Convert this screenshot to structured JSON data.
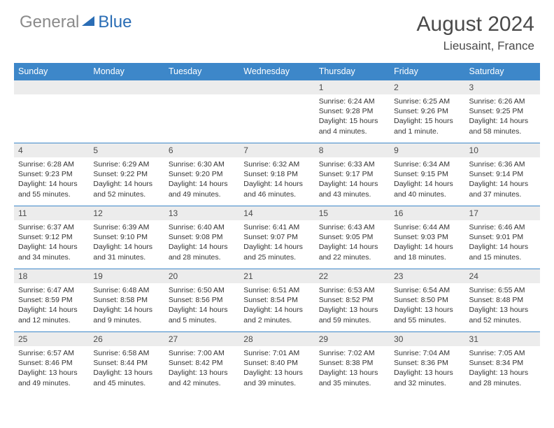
{
  "logo": {
    "text_gray": "General",
    "text_blue": "Blue"
  },
  "title": "August 2024",
  "location": "Lieusaint, France",
  "colors": {
    "header_bg": "#3d87c9",
    "header_text": "#ffffff",
    "daynum_bg": "#ececec",
    "body_text": "#333333",
    "title_text": "#4a4a4a",
    "logo_gray": "#8a8a8a",
    "logo_blue": "#2a6db5",
    "border": "#3d87c9"
  },
  "weekdays": [
    "Sunday",
    "Monday",
    "Tuesday",
    "Wednesday",
    "Thursday",
    "Friday",
    "Saturday"
  ],
  "weeks": [
    [
      null,
      null,
      null,
      null,
      {
        "n": "1",
        "sr": "Sunrise: 6:24 AM",
        "ss": "Sunset: 9:28 PM",
        "dl": "Daylight: 15 hours and 4 minutes."
      },
      {
        "n": "2",
        "sr": "Sunrise: 6:25 AM",
        "ss": "Sunset: 9:26 PM",
        "dl": "Daylight: 15 hours and 1 minute."
      },
      {
        "n": "3",
        "sr": "Sunrise: 6:26 AM",
        "ss": "Sunset: 9:25 PM",
        "dl": "Daylight: 14 hours and 58 minutes."
      }
    ],
    [
      {
        "n": "4",
        "sr": "Sunrise: 6:28 AM",
        "ss": "Sunset: 9:23 PM",
        "dl": "Daylight: 14 hours and 55 minutes."
      },
      {
        "n": "5",
        "sr": "Sunrise: 6:29 AM",
        "ss": "Sunset: 9:22 PM",
        "dl": "Daylight: 14 hours and 52 minutes."
      },
      {
        "n": "6",
        "sr": "Sunrise: 6:30 AM",
        "ss": "Sunset: 9:20 PM",
        "dl": "Daylight: 14 hours and 49 minutes."
      },
      {
        "n": "7",
        "sr": "Sunrise: 6:32 AM",
        "ss": "Sunset: 9:18 PM",
        "dl": "Daylight: 14 hours and 46 minutes."
      },
      {
        "n": "8",
        "sr": "Sunrise: 6:33 AM",
        "ss": "Sunset: 9:17 PM",
        "dl": "Daylight: 14 hours and 43 minutes."
      },
      {
        "n": "9",
        "sr": "Sunrise: 6:34 AM",
        "ss": "Sunset: 9:15 PM",
        "dl": "Daylight: 14 hours and 40 minutes."
      },
      {
        "n": "10",
        "sr": "Sunrise: 6:36 AM",
        "ss": "Sunset: 9:14 PM",
        "dl": "Daylight: 14 hours and 37 minutes."
      }
    ],
    [
      {
        "n": "11",
        "sr": "Sunrise: 6:37 AM",
        "ss": "Sunset: 9:12 PM",
        "dl": "Daylight: 14 hours and 34 minutes."
      },
      {
        "n": "12",
        "sr": "Sunrise: 6:39 AM",
        "ss": "Sunset: 9:10 PM",
        "dl": "Daylight: 14 hours and 31 minutes."
      },
      {
        "n": "13",
        "sr": "Sunrise: 6:40 AM",
        "ss": "Sunset: 9:08 PM",
        "dl": "Daylight: 14 hours and 28 minutes."
      },
      {
        "n": "14",
        "sr": "Sunrise: 6:41 AM",
        "ss": "Sunset: 9:07 PM",
        "dl": "Daylight: 14 hours and 25 minutes."
      },
      {
        "n": "15",
        "sr": "Sunrise: 6:43 AM",
        "ss": "Sunset: 9:05 PM",
        "dl": "Daylight: 14 hours and 22 minutes."
      },
      {
        "n": "16",
        "sr": "Sunrise: 6:44 AM",
        "ss": "Sunset: 9:03 PM",
        "dl": "Daylight: 14 hours and 18 minutes."
      },
      {
        "n": "17",
        "sr": "Sunrise: 6:46 AM",
        "ss": "Sunset: 9:01 PM",
        "dl": "Daylight: 14 hours and 15 minutes."
      }
    ],
    [
      {
        "n": "18",
        "sr": "Sunrise: 6:47 AM",
        "ss": "Sunset: 8:59 PM",
        "dl": "Daylight: 14 hours and 12 minutes."
      },
      {
        "n": "19",
        "sr": "Sunrise: 6:48 AM",
        "ss": "Sunset: 8:58 PM",
        "dl": "Daylight: 14 hours and 9 minutes."
      },
      {
        "n": "20",
        "sr": "Sunrise: 6:50 AM",
        "ss": "Sunset: 8:56 PM",
        "dl": "Daylight: 14 hours and 5 minutes."
      },
      {
        "n": "21",
        "sr": "Sunrise: 6:51 AM",
        "ss": "Sunset: 8:54 PM",
        "dl": "Daylight: 14 hours and 2 minutes."
      },
      {
        "n": "22",
        "sr": "Sunrise: 6:53 AM",
        "ss": "Sunset: 8:52 PM",
        "dl": "Daylight: 13 hours and 59 minutes."
      },
      {
        "n": "23",
        "sr": "Sunrise: 6:54 AM",
        "ss": "Sunset: 8:50 PM",
        "dl": "Daylight: 13 hours and 55 minutes."
      },
      {
        "n": "24",
        "sr": "Sunrise: 6:55 AM",
        "ss": "Sunset: 8:48 PM",
        "dl": "Daylight: 13 hours and 52 minutes."
      }
    ],
    [
      {
        "n": "25",
        "sr": "Sunrise: 6:57 AM",
        "ss": "Sunset: 8:46 PM",
        "dl": "Daylight: 13 hours and 49 minutes."
      },
      {
        "n": "26",
        "sr": "Sunrise: 6:58 AM",
        "ss": "Sunset: 8:44 PM",
        "dl": "Daylight: 13 hours and 45 minutes."
      },
      {
        "n": "27",
        "sr": "Sunrise: 7:00 AM",
        "ss": "Sunset: 8:42 PM",
        "dl": "Daylight: 13 hours and 42 minutes."
      },
      {
        "n": "28",
        "sr": "Sunrise: 7:01 AM",
        "ss": "Sunset: 8:40 PM",
        "dl": "Daylight: 13 hours and 39 minutes."
      },
      {
        "n": "29",
        "sr": "Sunrise: 7:02 AM",
        "ss": "Sunset: 8:38 PM",
        "dl": "Daylight: 13 hours and 35 minutes."
      },
      {
        "n": "30",
        "sr": "Sunrise: 7:04 AM",
        "ss": "Sunset: 8:36 PM",
        "dl": "Daylight: 13 hours and 32 minutes."
      },
      {
        "n": "31",
        "sr": "Sunrise: 7:05 AM",
        "ss": "Sunset: 8:34 PM",
        "dl": "Daylight: 13 hours and 28 minutes."
      }
    ]
  ]
}
